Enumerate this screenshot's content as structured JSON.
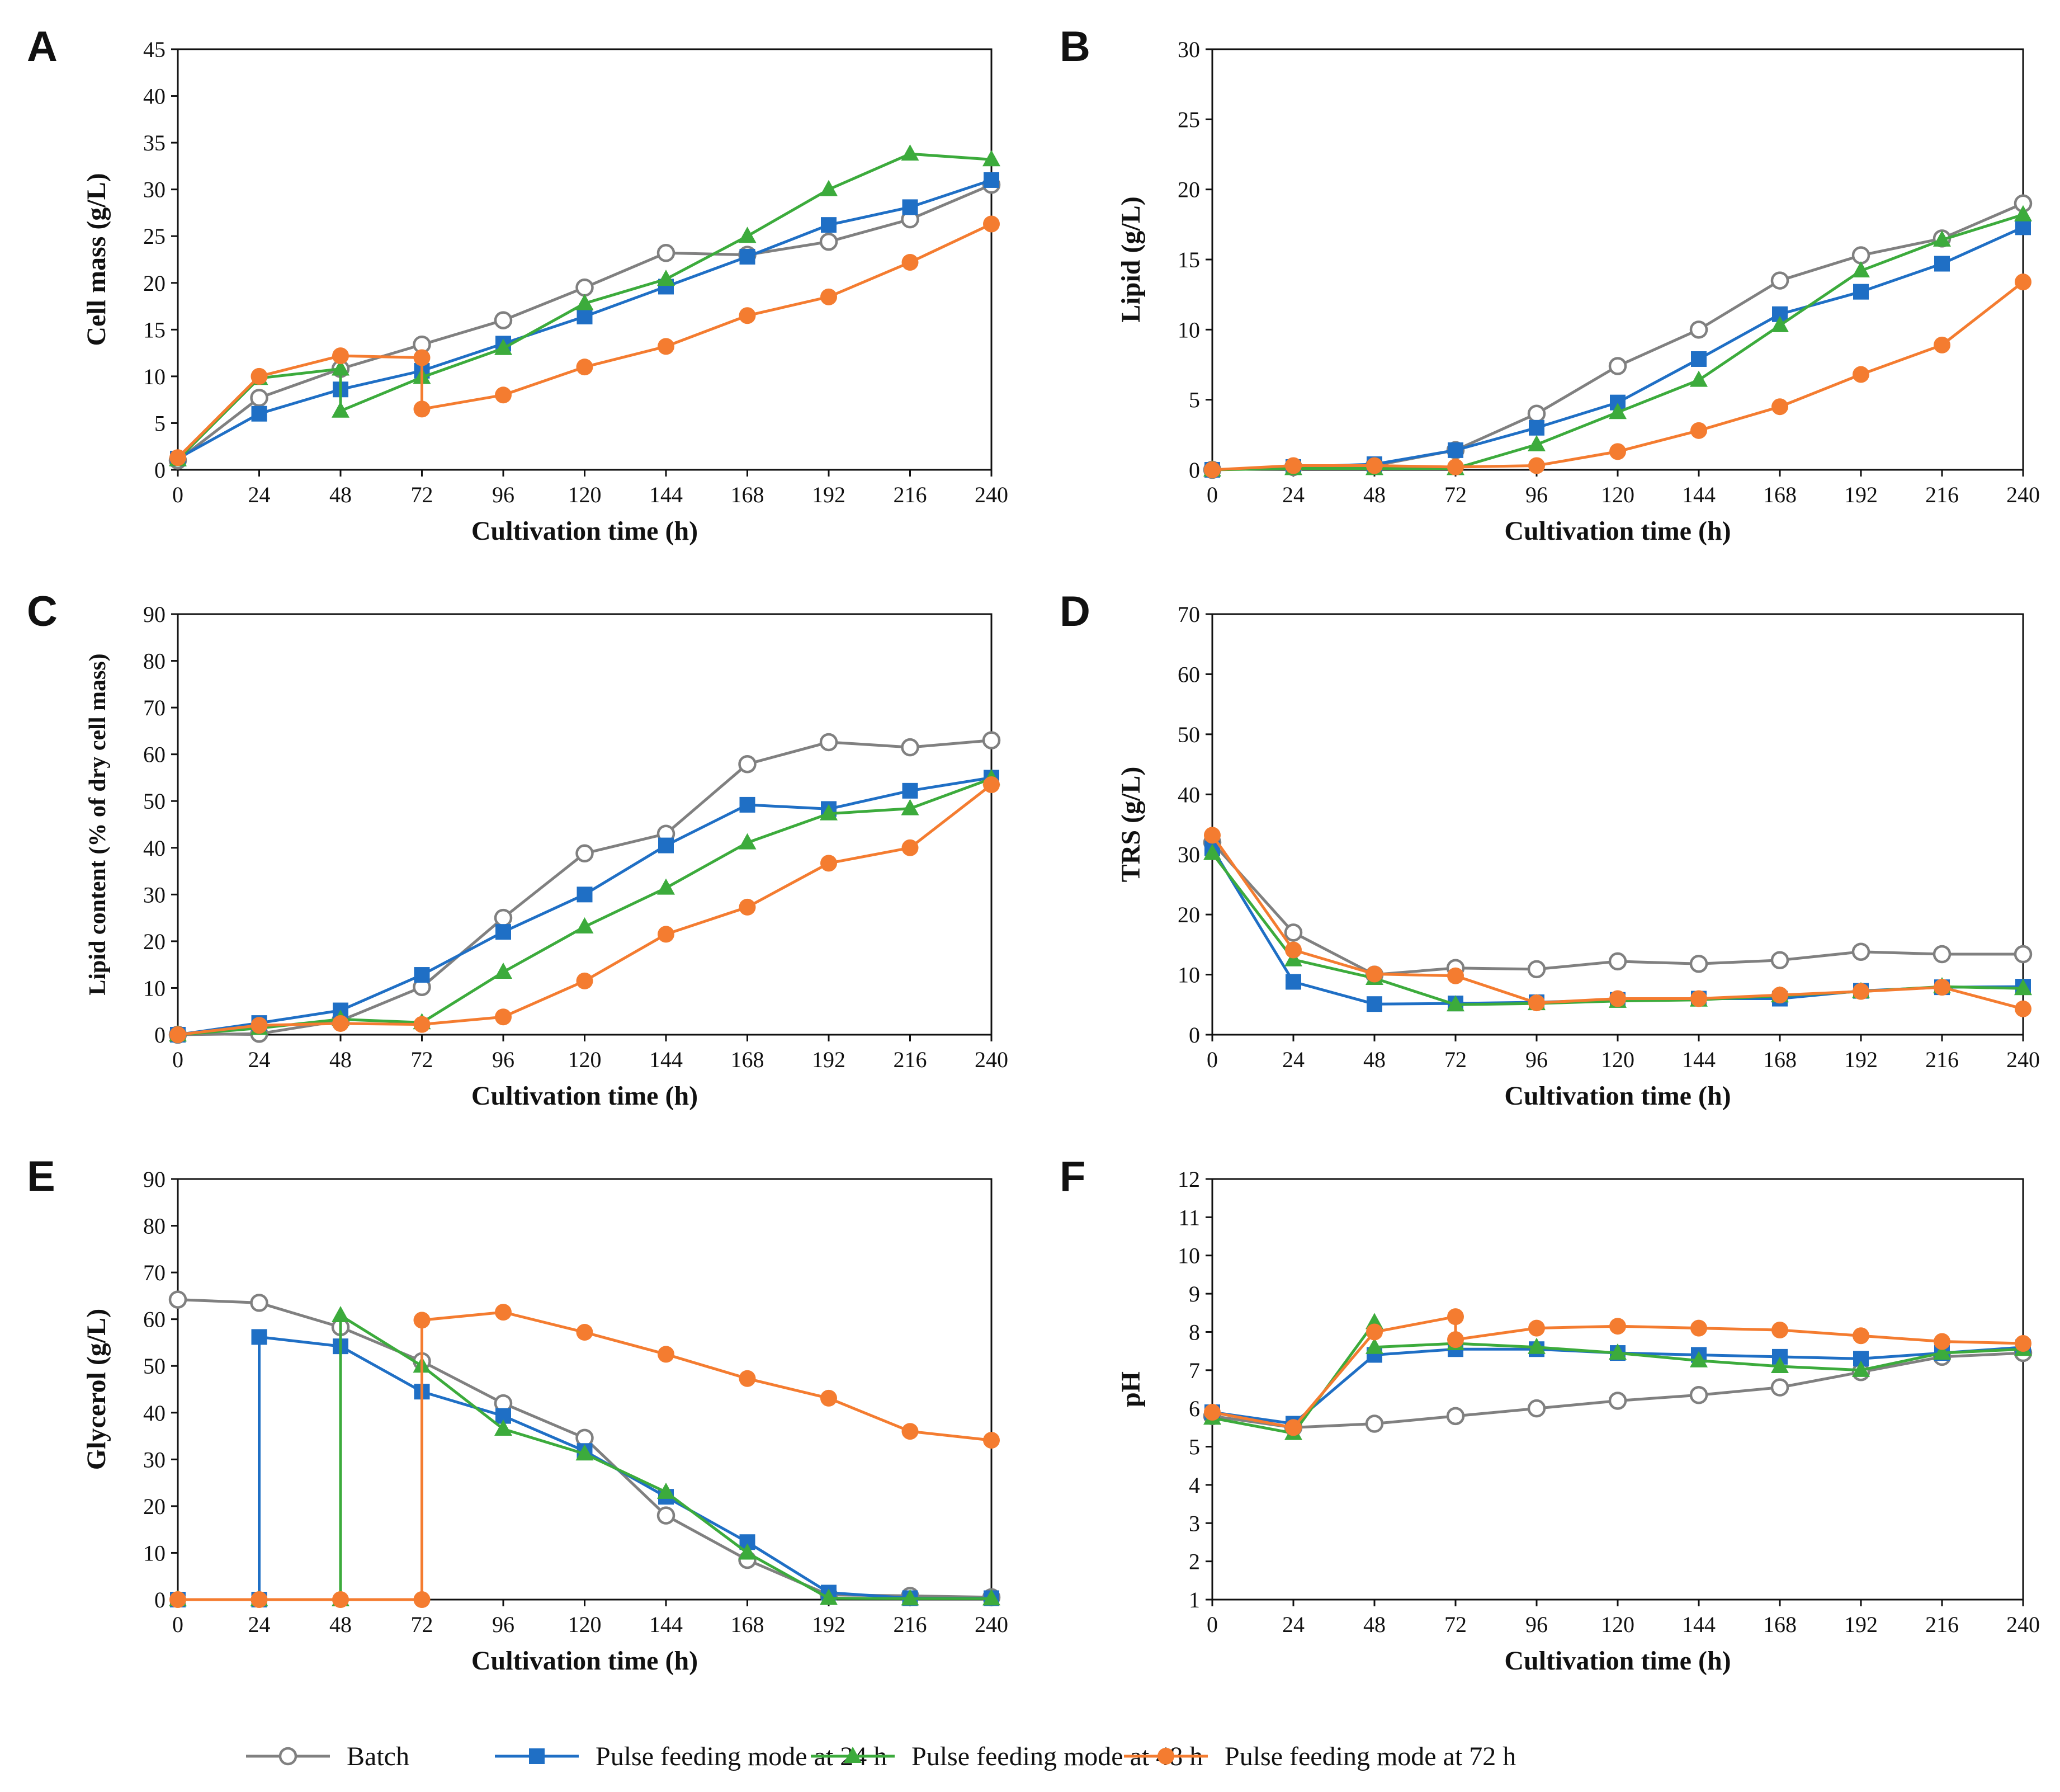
{
  "legend": [
    {
      "name": "Batch",
      "color": "#808080",
      "marker": "circle-open"
    },
    {
      "name": "Pulse feeding mode at 24 h",
      "color": "#1f6fc5",
      "marker": "square"
    },
    {
      "name": "Pulse feeding mode at 48 h",
      "color": "#3cab3c",
      "marker": "triangle"
    },
    {
      "name": "Pulse feeding mode at 72 h",
      "color": "#f47c30",
      "marker": "circle"
    }
  ],
  "chart_data": [
    {
      "panel": "A",
      "type": "line",
      "xlabel": "Cultivation time (h)",
      "ylabel": "Cell mass (g/L)",
      "xlim": [
        0,
        240
      ],
      "xticks": [
        0,
        24,
        48,
        72,
        96,
        120,
        144,
        168,
        192,
        216,
        240
      ],
      "ylim": [
        0,
        45
      ],
      "ystep": 5,
      "series": [
        {
          "name": "Batch",
          "x": [
            0,
            24,
            48,
            72,
            96,
            120,
            144,
            168,
            192,
            216,
            240
          ],
          "y": [
            1.0,
            7.7,
            10.8,
            13.4,
            16.0,
            19.5,
            23.2,
            23.0,
            24.4,
            26.8,
            30.5
          ]
        },
        {
          "name": "Pulse feeding mode at 24 h",
          "x": [
            0,
            24,
            48,
            72,
            96,
            120,
            144,
            168,
            192,
            216,
            240
          ],
          "y": [
            1.2,
            6.0,
            8.6,
            10.6,
            13.5,
            16.4,
            19.6,
            22.8,
            26.2,
            28.1,
            31.0
          ]
        },
        {
          "name": "Pulse feeding mode at 48 h",
          "x": [
            0,
            24,
            48,
            48,
            72,
            96,
            120,
            144,
            168,
            192,
            216,
            240
          ],
          "y": [
            1.1,
            9.8,
            10.8,
            6.3,
            9.9,
            13.0,
            17.8,
            20.4,
            25.0,
            30.0,
            33.8,
            33.2
          ]
        },
        {
          "name": "Pulse feeding mode at 72 h",
          "x": [
            0,
            24,
            48,
            72,
            72,
            96,
            120,
            144,
            168,
            192,
            216,
            240
          ],
          "y": [
            1.3,
            10.0,
            12.2,
            12.0,
            6.5,
            8.0,
            11.0,
            13.2,
            16.5,
            18.5,
            22.2,
            26.3
          ]
        }
      ]
    },
    {
      "panel": "B",
      "type": "line",
      "xlabel": "Cultivation time (h)",
      "ylabel": "Lipid (g/L)",
      "xlim": [
        0,
        240
      ],
      "xticks": [
        0,
        24,
        48,
        72,
        96,
        120,
        144,
        168,
        192,
        216,
        240
      ],
      "ylim": [
        0,
        30
      ],
      "ystep": 5,
      "series": [
        {
          "name": "Batch",
          "x": [
            0,
            24,
            48,
            72,
            96,
            120,
            144,
            168,
            192,
            216,
            240
          ],
          "y": [
            0,
            0.2,
            0.3,
            1.4,
            4.0,
            7.4,
            10.0,
            13.5,
            15.3,
            16.5,
            19.0
          ]
        },
        {
          "name": "Pulse feeding mode at 24 h",
          "x": [
            0,
            24,
            48,
            72,
            96,
            120,
            144,
            168,
            192,
            216,
            240
          ],
          "y": [
            0,
            0.2,
            0.4,
            1.4,
            3.0,
            4.8,
            7.9,
            11.1,
            12.7,
            14.7,
            17.3
          ]
        },
        {
          "name": "Pulse feeding mode at 48 h",
          "x": [
            0,
            24,
            48,
            72,
            96,
            120,
            144,
            168,
            192,
            216,
            240
          ],
          "y": [
            0,
            0.1,
            0.1,
            0.1,
            1.8,
            4.1,
            6.4,
            10.3,
            14.2,
            16.4,
            18.2
          ]
        },
        {
          "name": "Pulse feeding mode at 72 h",
          "x": [
            0,
            24,
            48,
            72,
            96,
            120,
            144,
            168,
            192,
            216,
            240
          ],
          "y": [
            0,
            0.3,
            0.3,
            0.2,
            0.3,
            1.3,
            2.8,
            4.5,
            6.8,
            8.9,
            13.4
          ]
        }
      ]
    },
    {
      "panel": "C",
      "type": "line",
      "xlabel": "Cultivation time (h)",
      "ylabel": "Lipid content (% of dry cell mass)",
      "xlim": [
        0,
        240
      ],
      "xticks": [
        0,
        24,
        48,
        72,
        96,
        120,
        144,
        168,
        192,
        216,
        240
      ],
      "ylim": [
        0,
        90
      ],
      "ystep": 10,
      "series": [
        {
          "name": "Batch",
          "x": [
            0,
            24,
            48,
            72,
            96,
            120,
            144,
            168,
            192,
            216,
            240
          ],
          "y": [
            0,
            0.2,
            3.0,
            10.2,
            25.0,
            38.8,
            43.0,
            57.9,
            62.6,
            61.5,
            63.0
          ]
        },
        {
          "name": "Pulse feeding mode at 24 h",
          "x": [
            0,
            24,
            48,
            72,
            96,
            120,
            144,
            168,
            192,
            216,
            240
          ],
          "y": [
            0,
            2.5,
            5.2,
            12.8,
            22.0,
            30.0,
            40.5,
            49.2,
            48.3,
            52.2,
            55.0
          ]
        },
        {
          "name": "Pulse feeding mode at 48 h",
          "x": [
            0,
            24,
            48,
            72,
            96,
            120,
            144,
            168,
            192,
            216,
            240
          ],
          "y": [
            0,
            1.4,
            3.3,
            2.6,
            13.4,
            23.1,
            31.4,
            41.1,
            47.3,
            48.4,
            54.8
          ]
        },
        {
          "name": "Pulse feeding mode at 72 h",
          "x": [
            0,
            24,
            48,
            72,
            96,
            120,
            144,
            168,
            192,
            216,
            240
          ],
          "y": [
            0,
            2.0,
            2.4,
            2.2,
            3.8,
            11.5,
            21.5,
            27.3,
            36.7,
            40.0,
            53.5
          ]
        }
      ]
    },
    {
      "panel": "D",
      "type": "line",
      "xlabel": "Cultivation time (h)",
      "ylabel": "TRS (g/L)",
      "xlim": [
        0,
        240
      ],
      "xticks": [
        0,
        24,
        48,
        72,
        96,
        120,
        144,
        168,
        192,
        216,
        240
      ],
      "ylim": [
        0,
        70
      ],
      "ystep": 10,
      "series": [
        {
          "name": "Batch",
          "x": [
            0,
            24,
            48,
            72,
            96,
            120,
            144,
            168,
            192,
            216,
            240
          ],
          "y": [
            32.0,
            17.0,
            10.0,
            11.1,
            10.9,
            12.2,
            11.8,
            12.4,
            13.8,
            13.4,
            13.4
          ]
        },
        {
          "name": "Pulse feeding mode at 24 h",
          "x": [
            0,
            24,
            48,
            72,
            96,
            120,
            144,
            168,
            192,
            216,
            240
          ],
          "y": [
            31.0,
            8.8,
            5.1,
            5.2,
            5.4,
            5.8,
            6.0,
            6.0,
            7.3,
            7.9,
            8.0
          ]
        },
        {
          "name": "Pulse feeding mode at 48 h",
          "x": [
            0,
            24,
            48,
            72,
            96,
            120,
            144,
            168,
            192,
            216,
            240
          ],
          "y": [
            30.2,
            12.5,
            9.4,
            5.0,
            5.2,
            5.6,
            5.8,
            6.5,
            7.2,
            8.0,
            7.7
          ]
        },
        {
          "name": "Pulse feeding mode at 72 h",
          "x": [
            0,
            24,
            48,
            72,
            96,
            120,
            144,
            168,
            192,
            216,
            240
          ],
          "y": [
            33.2,
            14.1,
            10.1,
            9.8,
            5.3,
            6.0,
            6.0,
            6.6,
            7.2,
            7.9,
            4.3
          ]
        }
      ]
    },
    {
      "panel": "E",
      "type": "line",
      "xlabel": "Cultivation time (h)",
      "ylabel": "Glycerol (g/L)",
      "xlim": [
        0,
        240
      ],
      "xticks": [
        0,
        24,
        48,
        72,
        96,
        120,
        144,
        168,
        192,
        216,
        240
      ],
      "ylim": [
        0,
        90
      ],
      "ystep": 10,
      "series": [
        {
          "name": "Batch",
          "x": [
            0,
            24,
            48,
            72,
            96,
            120,
            144,
            168,
            192,
            216,
            240
          ],
          "y": [
            64.2,
            63.5,
            58.3,
            51.0,
            42.0,
            34.6,
            18.0,
            8.5,
            1.0,
            0.8,
            0.5
          ]
        },
        {
          "name": "Pulse feeding mode at 24 h",
          "x": [
            0,
            24,
            24,
            48,
            72,
            96,
            120,
            144,
            168,
            192,
            216,
            240
          ],
          "y": [
            0,
            0,
            56.2,
            54.2,
            44.5,
            39.3,
            31.8,
            22.0,
            12.3,
            1.5,
            0.3,
            0.3
          ]
        },
        {
          "name": "Pulse feeding mode at 48 h",
          "x": [
            0,
            24,
            48,
            48,
            72,
            96,
            120,
            144,
            168,
            192,
            216,
            240
          ],
          "y": [
            0,
            0,
            0,
            60.8,
            50.0,
            36.5,
            31.2,
            23.0,
            10.0,
            0.3,
            0.2,
            0.2
          ]
        },
        {
          "name": "Pulse feeding mode at 72 h",
          "x": [
            0,
            24,
            48,
            72,
            72,
            96,
            120,
            144,
            168,
            192,
            216,
            240
          ],
          "y": [
            0,
            0,
            0,
            0,
            59.8,
            61.5,
            57.2,
            52.5,
            47.3,
            43.1,
            36.0,
            34.1
          ]
        }
      ]
    },
    {
      "panel": "F",
      "type": "line",
      "xlabel": "Cultivation time (h)",
      "ylabel": "pH",
      "xlim": [
        0,
        240
      ],
      "xticks": [
        0,
        24,
        48,
        72,
        96,
        120,
        144,
        168,
        192,
        216,
        240
      ],
      "ylim": [
        1,
        12
      ],
      "ystep": 1,
      "series": [
        {
          "name": "Batch",
          "x": [
            0,
            24,
            48,
            72,
            96,
            120,
            144,
            168,
            192,
            216,
            240
          ],
          "y": [
            5.8,
            5.5,
            5.6,
            5.8,
            6.0,
            6.2,
            6.35,
            6.55,
            6.95,
            7.35,
            7.45
          ]
        },
        {
          "name": "Pulse feeding mode at 24 h",
          "x": [
            0,
            24,
            48,
            72,
            96,
            120,
            144,
            168,
            192,
            216,
            240
          ],
          "y": [
            5.9,
            5.6,
            7.4,
            7.55,
            7.55,
            7.45,
            7.4,
            7.35,
            7.3,
            7.45,
            7.6
          ]
        },
        {
          "name": "Pulse feeding mode at 48 h",
          "x": [
            0,
            24,
            48,
            48,
            72,
            96,
            120,
            144,
            168,
            192,
            216,
            240
          ],
          "y": [
            5.75,
            5.35,
            8.25,
            7.6,
            7.7,
            7.6,
            7.45,
            7.25,
            7.1,
            7.0,
            7.45,
            7.55
          ]
        },
        {
          "name": "Pulse feeding mode at 72 h",
          "x": [
            0,
            24,
            48,
            72,
            72,
            96,
            120,
            144,
            168,
            192,
            216,
            240
          ],
          "y": [
            5.9,
            5.5,
            8.0,
            8.4,
            7.8,
            8.1,
            8.15,
            8.1,
            8.05,
            7.9,
            7.75,
            7.7
          ]
        }
      ]
    }
  ]
}
